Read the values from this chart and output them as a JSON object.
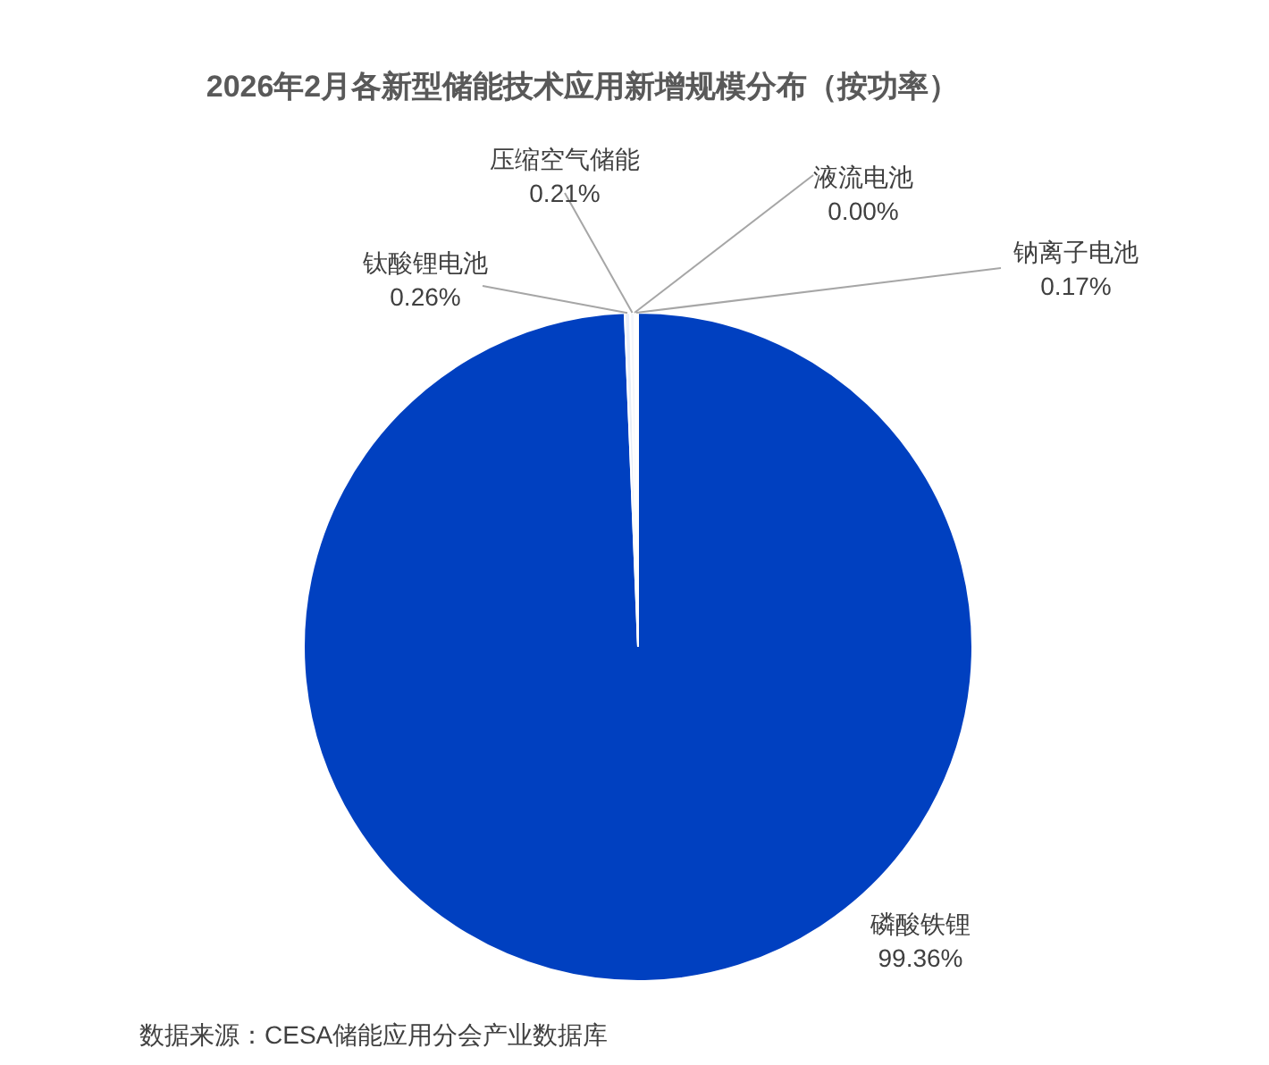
{
  "chart_data": {
    "type": "pie",
    "title": "2026年2月各新型储能技术应用新增规模分布（按功率）",
    "categories": [
      "磷酸铁锂",
      "钛酸锂电池",
      "压缩空气储能",
      "液流电池",
      "钠离子电池"
    ],
    "values": [
      99.36,
      0.26,
      0.21,
      0.0,
      0.17
    ],
    "colors": [
      "#0040c0",
      "#e8eef8",
      "#f4f6fb",
      "#dfe6f3",
      "#ffffff"
    ],
    "value_labels": [
      "99.36%",
      "0.26%",
      "0.21%",
      "0.00%",
      "0.17%"
    ],
    "legend": false,
    "annotations": [
      "数据来源：CESA储能应用分会产业数据库"
    ]
  }
}
